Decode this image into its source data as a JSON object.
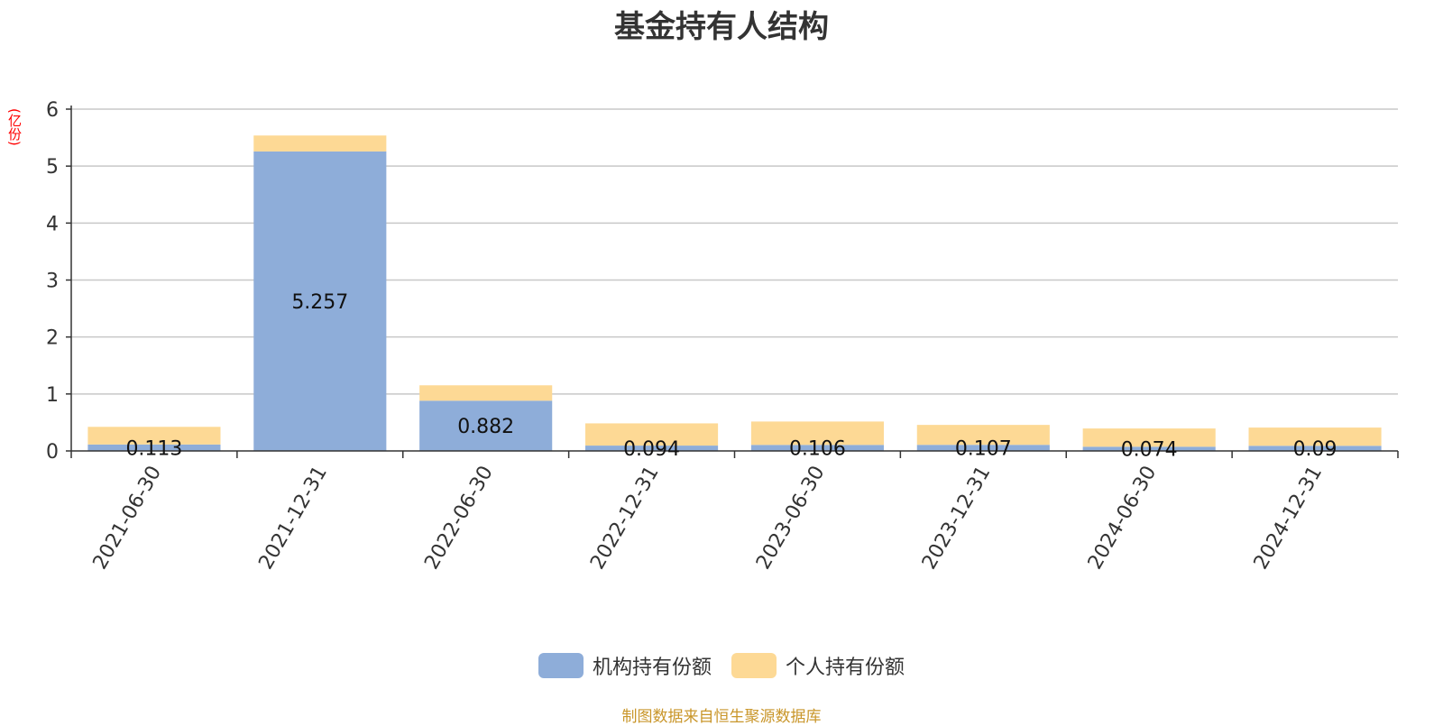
{
  "title": "基金持有人结构",
  "unit_label": "(亿份)",
  "source": "制图数据来自恒生聚源数据库",
  "legend": [
    {
      "name": "机构持有份额",
      "color": "#8eadd9"
    },
    {
      "name": "个人持有份额",
      "color": "#fdd995"
    }
  ],
  "chart_data": {
    "type": "bar",
    "stacked": true,
    "categories": [
      "2021-06-30",
      "2021-12-31",
      "2022-06-30",
      "2022-12-31",
      "2023-06-30",
      "2023-12-31",
      "2024-06-30",
      "2024-12-31"
    ],
    "series": [
      {
        "name": "机构持有份额",
        "color": "#8eadd9",
        "values": [
          0.113,
          5.257,
          0.882,
          0.094,
          0.106,
          0.107,
          0.074,
          0.09
        ],
        "labels": [
          "0.113",
          "5.257",
          "0.882",
          "0.094",
          "0.106",
          "0.107",
          "0.074",
          "0.09"
        ]
      },
      {
        "name": "个人持有份额",
        "color": "#fdd995",
        "values": [
          0.31,
          0.28,
          0.27,
          0.39,
          0.41,
          0.35,
          0.32,
          0.32
        ]
      }
    ],
    "yticks": [
      "0",
      "1",
      "2",
      "3",
      "4",
      "5",
      "6"
    ],
    "ylim": [
      0,
      6
    ],
    "grid": true,
    "legend_position": "bottom"
  }
}
